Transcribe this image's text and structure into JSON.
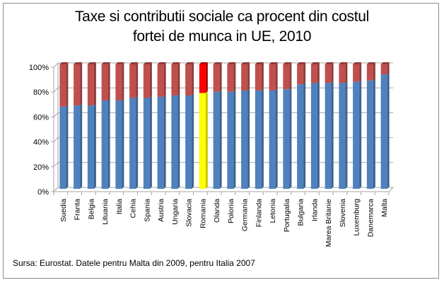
{
  "chart_data": {
    "type": "bar",
    "stacked": true,
    "normalized": true,
    "title": "Taxe si contributii sociale ca procent din costul fortei de munca in UE, 2010",
    "title_lines": [
      "Taxe si contributii sociale ca procent din costul",
      "fortei de munca in UE, 2010"
    ],
    "xlabel": "",
    "ylabel": "",
    "ylim": [
      0,
      100
    ],
    "yticks": [
      0,
      20,
      40,
      60,
      80,
      100
    ],
    "ytick_labels": [
      "0%",
      "20%",
      "40%",
      "60%",
      "80%",
      "100%"
    ],
    "grid": true,
    "legend": "none",
    "categories": [
      "Suedia",
      "Franta",
      "Belgia",
      "Lituania",
      "Italia",
      "Cehia",
      "Spania",
      "Austria",
      "Ungaria",
      "Slovacia",
      "Romania",
      "Olanda",
      "Polonia",
      "Germania",
      "Finlanda",
      "Letonia",
      "Portugalia",
      "Bulgaria",
      "Irlanda",
      "Marea Britanie",
      "Slovenia",
      "Luxemburg",
      "Danemarca",
      "Malta"
    ],
    "series": [
      {
        "name": "lower segment",
        "color": "#4f81bd",
        "values": [
          66,
          67,
          67,
          71,
          71,
          73,
          73,
          74,
          75,
          75,
          77,
          78,
          78,
          79,
          79,
          79,
          80,
          84,
          85,
          85,
          85,
          86,
          87,
          92
        ]
      },
      {
        "name": "upper segment",
        "color": "#c0504d",
        "values": [
          34,
          33,
          33,
          29,
          29,
          27,
          27,
          26,
          25,
          25,
          23,
          22,
          22,
          21,
          21,
          21,
          20,
          16,
          15,
          15,
          15,
          14,
          13,
          8
        ]
      }
    ],
    "highlight": {
      "category": "Romania",
      "lower_color": "#ffff00",
      "upper_color": "#ff0000"
    },
    "note": "Sursa: Eurostat. Datele pentru Malta din 2009,  pentru Italia 2007"
  },
  "colors": {
    "lower": "#4f81bd",
    "lower_side": "#3a6190",
    "upper": "#c0504d",
    "upper_side": "#8f3b39",
    "highlight_lower": "#ffff00",
    "highlight_lower_side": "#c8c800",
    "highlight_upper": "#ff0000",
    "highlight_upper_side": "#b00000",
    "grid": "#a6a6a6"
  },
  "source_text": "Sursa: Eurostat. Datele pentru Malta din 2009,  pentru Italia 2007"
}
